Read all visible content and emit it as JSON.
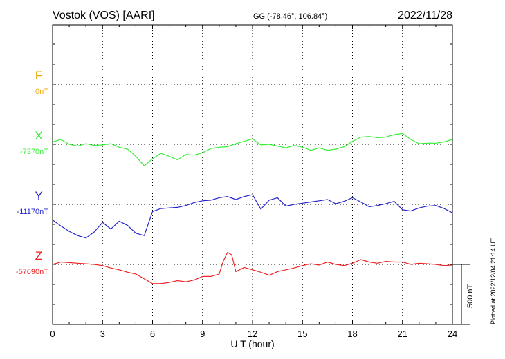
{
  "header": {
    "station": "Vostok (VOS)  [AARI]",
    "coords": "GG (-78.46°, 106.84°)",
    "date": "2022/11/28"
  },
  "side_note": "Plotted at 2022/12/04 21:14 UT",
  "chart_data": {
    "type": "line",
    "xlabel": "U T (hour)",
    "x_ticks": [
      "0",
      "3",
      "6",
      "9",
      "12",
      "15",
      "18",
      "21",
      "24"
    ],
    "xlim": [
      0,
      24
    ],
    "scale_bar": "500 nT",
    "scale_bar_nT": 500,
    "grid": true,
    "colors": {
      "F": "#f0a800",
      "X": "#33ee33",
      "Y": "#2222cc",
      "Z": "#ee2222"
    },
    "series": [
      {
        "name": "F",
        "offset_label": "0nT",
        "baseline_nT": 0,
        "x": [],
        "y": []
      },
      {
        "name": "X",
        "offset_label": "-7370nT",
        "baseline_nT": -7370,
        "x": [
          0,
          0.5,
          1,
          1.5,
          2,
          2.5,
          3,
          3.5,
          4,
          4.5,
          5,
          5.5,
          6,
          6.5,
          7,
          7.5,
          8,
          8.5,
          9,
          9.5,
          10,
          10.5,
          11,
          11.5,
          12,
          12.5,
          13,
          13.5,
          14,
          14.5,
          15,
          15.5,
          16,
          16.5,
          17,
          17.5,
          18,
          18.5,
          19,
          19.5,
          20,
          20.5,
          21,
          21.5,
          22,
          22.5,
          23,
          23.5,
          24
        ],
        "y": [
          -7350,
          -7330,
          -7370,
          -7385,
          -7365,
          -7380,
          -7375,
          -7365,
          -7395,
          -7410,
          -7470,
          -7550,
          -7490,
          -7445,
          -7470,
          -7500,
          -7455,
          -7460,
          -7440,
          -7405,
          -7395,
          -7390,
          -7365,
          -7345,
          -7325,
          -7375,
          -7370,
          -7385,
          -7400,
          -7380,
          -7395,
          -7420,
          -7400,
          -7420,
          -7410,
          -7390,
          -7345,
          -7310,
          -7305,
          -7315,
          -7310,
          -7290,
          -7280,
          -7330,
          -7365,
          -7360,
          -7360,
          -7350,
          -7330
        ]
      },
      {
        "name": "Y",
        "offset_label": "-11170nT",
        "baseline_nT": -11170,
        "x": [
          0,
          0.5,
          1,
          1.5,
          2,
          2.5,
          3,
          3.5,
          4,
          4.5,
          5,
          5.5,
          6,
          6.5,
          7,
          7.5,
          8,
          8.5,
          9,
          9.5,
          10,
          10.5,
          11,
          11.5,
          12,
          12.5,
          13,
          13.5,
          14,
          14.5,
          15,
          15.5,
          16,
          16.5,
          17,
          17.5,
          18,
          18.5,
          19,
          19.5,
          20,
          20.5,
          21,
          21.5,
          22,
          22.5,
          23,
          23.5,
          24
        ],
        "y": [
          -11300,
          -11350,
          -11395,
          -11430,
          -11450,
          -11400,
          -11320,
          -11375,
          -11310,
          -11345,
          -11410,
          -11430,
          -11230,
          -11205,
          -11200,
          -11195,
          -11180,
          -11155,
          -11140,
          -11135,
          -11115,
          -11105,
          -11130,
          -11105,
          -11090,
          -11210,
          -11135,
          -11115,
          -11185,
          -11170,
          -11160,
          -11150,
          -11140,
          -11130,
          -11165,
          -11145,
          -11115,
          -11150,
          -11190,
          -11180,
          -11165,
          -11145,
          -11215,
          -11225,
          -11200,
          -11185,
          -11180,
          -11205,
          -11240
        ]
      },
      {
        "name": "Z",
        "offset_label": "-57690nT",
        "baseline_nT": -57690,
        "x": [
          0,
          0.5,
          1,
          1.5,
          2,
          2.5,
          3,
          3.5,
          4,
          4.5,
          5,
          5.5,
          6,
          6.5,
          7,
          7.5,
          8,
          8.5,
          9,
          9.5,
          10,
          10.25,
          10.5,
          10.75,
          11,
          11.5,
          12,
          12.5,
          13,
          13.5,
          14,
          14.5,
          15,
          15.5,
          16,
          16.5,
          17,
          17.5,
          18,
          18.5,
          19,
          19.5,
          20,
          20.5,
          21,
          21.5,
          22,
          22.5,
          23,
          23.5,
          24
        ],
        "y": [
          -57690,
          -57670,
          -57675,
          -57680,
          -57685,
          -57690,
          -57700,
          -57720,
          -57735,
          -57755,
          -57770,
          -57810,
          -57850,
          -57850,
          -57840,
          -57825,
          -57835,
          -57820,
          -57790,
          -57790,
          -57770,
          -57660,
          -57590,
          -57610,
          -57750,
          -57715,
          -57735,
          -57755,
          -57780,
          -57750,
          -57735,
          -57720,
          -57700,
          -57685,
          -57695,
          -57670,
          -57690,
          -57700,
          -57680,
          -57650,
          -57670,
          -57680,
          -57665,
          -57670,
          -57670,
          -57690,
          -57680,
          -57685,
          -57690,
          -57700,
          -57695
        ]
      }
    ]
  }
}
